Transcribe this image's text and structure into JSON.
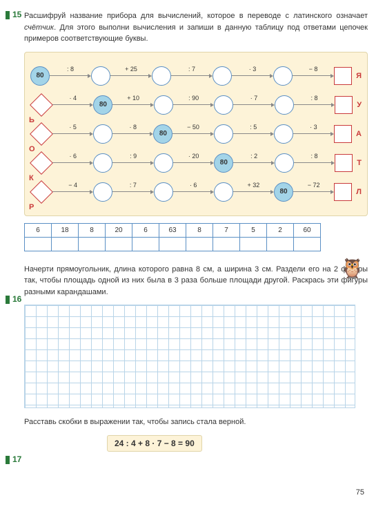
{
  "task15": {
    "num": "15",
    "text_parts": [
      "Расшифруй название прибора для вычислений, которое в переводе с латинского означает ",
      "счётчик",
      ". Для этого выполни вычисления и запиши в данную таблицу под ответами цепочек примеров соответствующие буквы."
    ]
  },
  "chains": [
    {
      "left_letter": "",
      "right_letter": "Я",
      "start": {
        "type": "circle",
        "value": "80",
        "filled": true
      },
      "ops": [
        ": 8",
        "+ 25",
        ": 7",
        "· 3",
        "− 8"
      ],
      "highlight_index": 0
    },
    {
      "left_letter": "Ь",
      "right_letter": "У",
      "start": {
        "type": "diamond",
        "value": ""
      },
      "ops": [
        "· 4",
        "+ 10",
        ": 90",
        "· 7",
        ": 8"
      ],
      "highlight_index": 1,
      "highlight_value": "80"
    },
    {
      "left_letter": "О",
      "right_letter": "А",
      "start": {
        "type": "diamond",
        "value": ""
      },
      "ops": [
        "· 5",
        "· 8",
        "− 50",
        ": 5",
        "· 3"
      ],
      "highlight_index": 2,
      "highlight_value": "80"
    },
    {
      "left_letter": "К",
      "right_letter": "Т",
      "start": {
        "type": "diamond",
        "value": ""
      },
      "ops": [
        "· 6",
        ": 9",
        "· 20",
        ": 2",
        ": 8"
      ],
      "highlight_index": 3,
      "highlight_value": "80"
    },
    {
      "left_letter": "Р",
      "right_letter": "Л",
      "start": {
        "type": "diamond",
        "value": ""
      },
      "ops": [
        "− 4",
        ": 7",
        "· 6",
        "+ 32",
        "− 72"
      ],
      "highlight_index": 4,
      "highlight_value": "80"
    }
  ],
  "answer_table": {
    "row1": [
      "6",
      "18",
      "8",
      "20",
      "6",
      "63",
      "8",
      "7",
      "5",
      "2",
      "60"
    ],
    "row2": [
      "",
      "",
      "",
      "",
      "",
      "",
      "",
      "",
      "",
      "",
      ""
    ]
  },
  "task16": {
    "num": "16",
    "text": "Начерти прямоугольник, длина которого равна 8 см, а ширина 3 см. Раздели его на 2 фигуры так, чтобы площадь одной из них была в 3 раза больше площади другой. Раскрась эти фигуры разными карандашами."
  },
  "task17": {
    "num": "17",
    "text": "Расставь скобки в выражении так, чтобы запись стала верной.",
    "expr": "24 : 4 + 8 · 7 − 8 = 90"
  },
  "page_number": "75",
  "colors": {
    "task_num": "#2a7a3a",
    "letter": "#c93a3a",
    "circle_border": "#5a8fc4",
    "circle_fill": "#a3d4e8",
    "chains_bg": "#fdf3d8",
    "grid": "#b8d4e8"
  }
}
